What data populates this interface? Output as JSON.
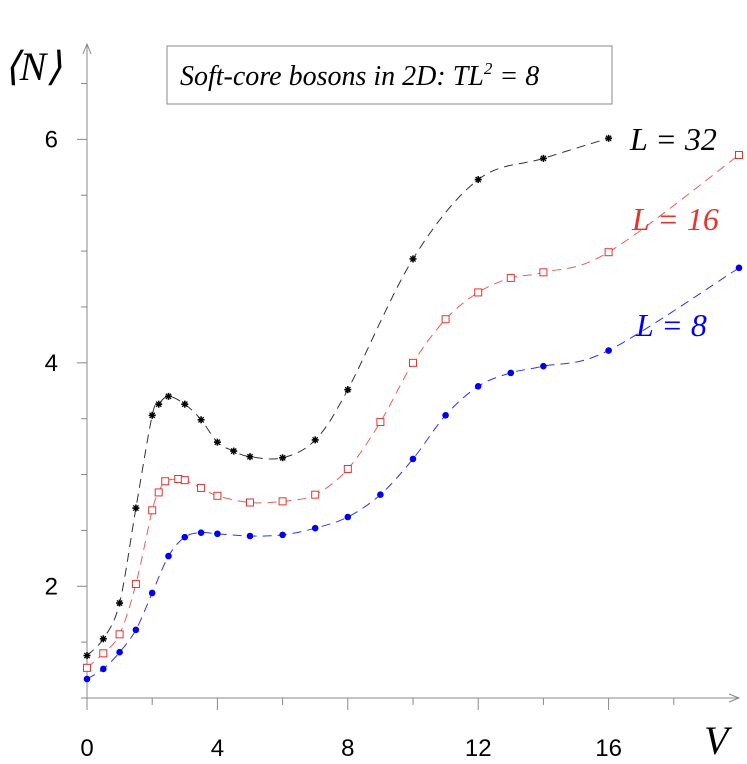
{
  "chart_data": {
    "type": "line",
    "title": "Soft-core bosons in 2D: TL",
    "title_sup": "2",
    "title_end": " = 8",
    "xlabel": "V",
    "ylabel": "⟨N⟩",
    "xlim": [
      0,
      20
    ],
    "ylim": [
      1.0,
      6.8
    ],
    "x_ticks": [
      0,
      4,
      8,
      12,
      16
    ],
    "x_tick_labels": [
      "0",
      "4",
      "8",
      "12",
      "16"
    ],
    "y_ticks": [
      2,
      4,
      6
    ],
    "y_tick_labels": [
      "2",
      "4",
      "6"
    ],
    "grid": false,
    "series": [
      {
        "name": "L = 32",
        "color": "#000000",
        "marker": "star",
        "x": [
          0,
          0.5,
          1,
          1.5,
          2,
          2.2,
          2.5,
          3,
          3.5,
          4,
          4.5,
          5,
          6,
          7,
          8,
          10,
          12,
          14,
          16
        ],
        "y": [
          1.38,
          1.53,
          1.85,
          2.7,
          3.53,
          3.63,
          3.7,
          3.63,
          3.49,
          3.29,
          3.21,
          3.16,
          3.15,
          3.31,
          3.76,
          4.93,
          5.64,
          5.83,
          6.01
        ]
      },
      {
        "name": "L = 16",
        "color": "#e8322d",
        "marker": "square",
        "x": [
          0,
          0.5,
          1,
          1.5,
          2,
          2.2,
          2.4,
          2.8,
          3,
          3.5,
          4,
          5,
          6,
          7,
          8,
          9,
          10,
          11,
          12,
          13,
          14,
          16,
          20
        ],
        "y": [
          1.27,
          1.4,
          1.57,
          2.02,
          2.68,
          2.84,
          2.94,
          2.96,
          2.95,
          2.88,
          2.81,
          2.75,
          2.76,
          2.82,
          3.05,
          3.47,
          4.0,
          4.39,
          4.63,
          4.76,
          4.81,
          4.99,
          5.86
        ]
      },
      {
        "name": "L = 8",
        "color": "#0000ee",
        "marker": "circle",
        "x": [
          0,
          0.5,
          1,
          1.5,
          2,
          2.5,
          3,
          3.5,
          4,
          5,
          6,
          7,
          8,
          9,
          10,
          11,
          12,
          13,
          14,
          16,
          20
        ],
        "y": [
          1.17,
          1.26,
          1.41,
          1.61,
          1.94,
          2.27,
          2.44,
          2.48,
          2.47,
          2.45,
          2.46,
          2.52,
          2.62,
          2.82,
          3.14,
          3.53,
          3.79,
          3.91,
          3.97,
          4.11,
          4.85
        ]
      }
    ]
  }
}
